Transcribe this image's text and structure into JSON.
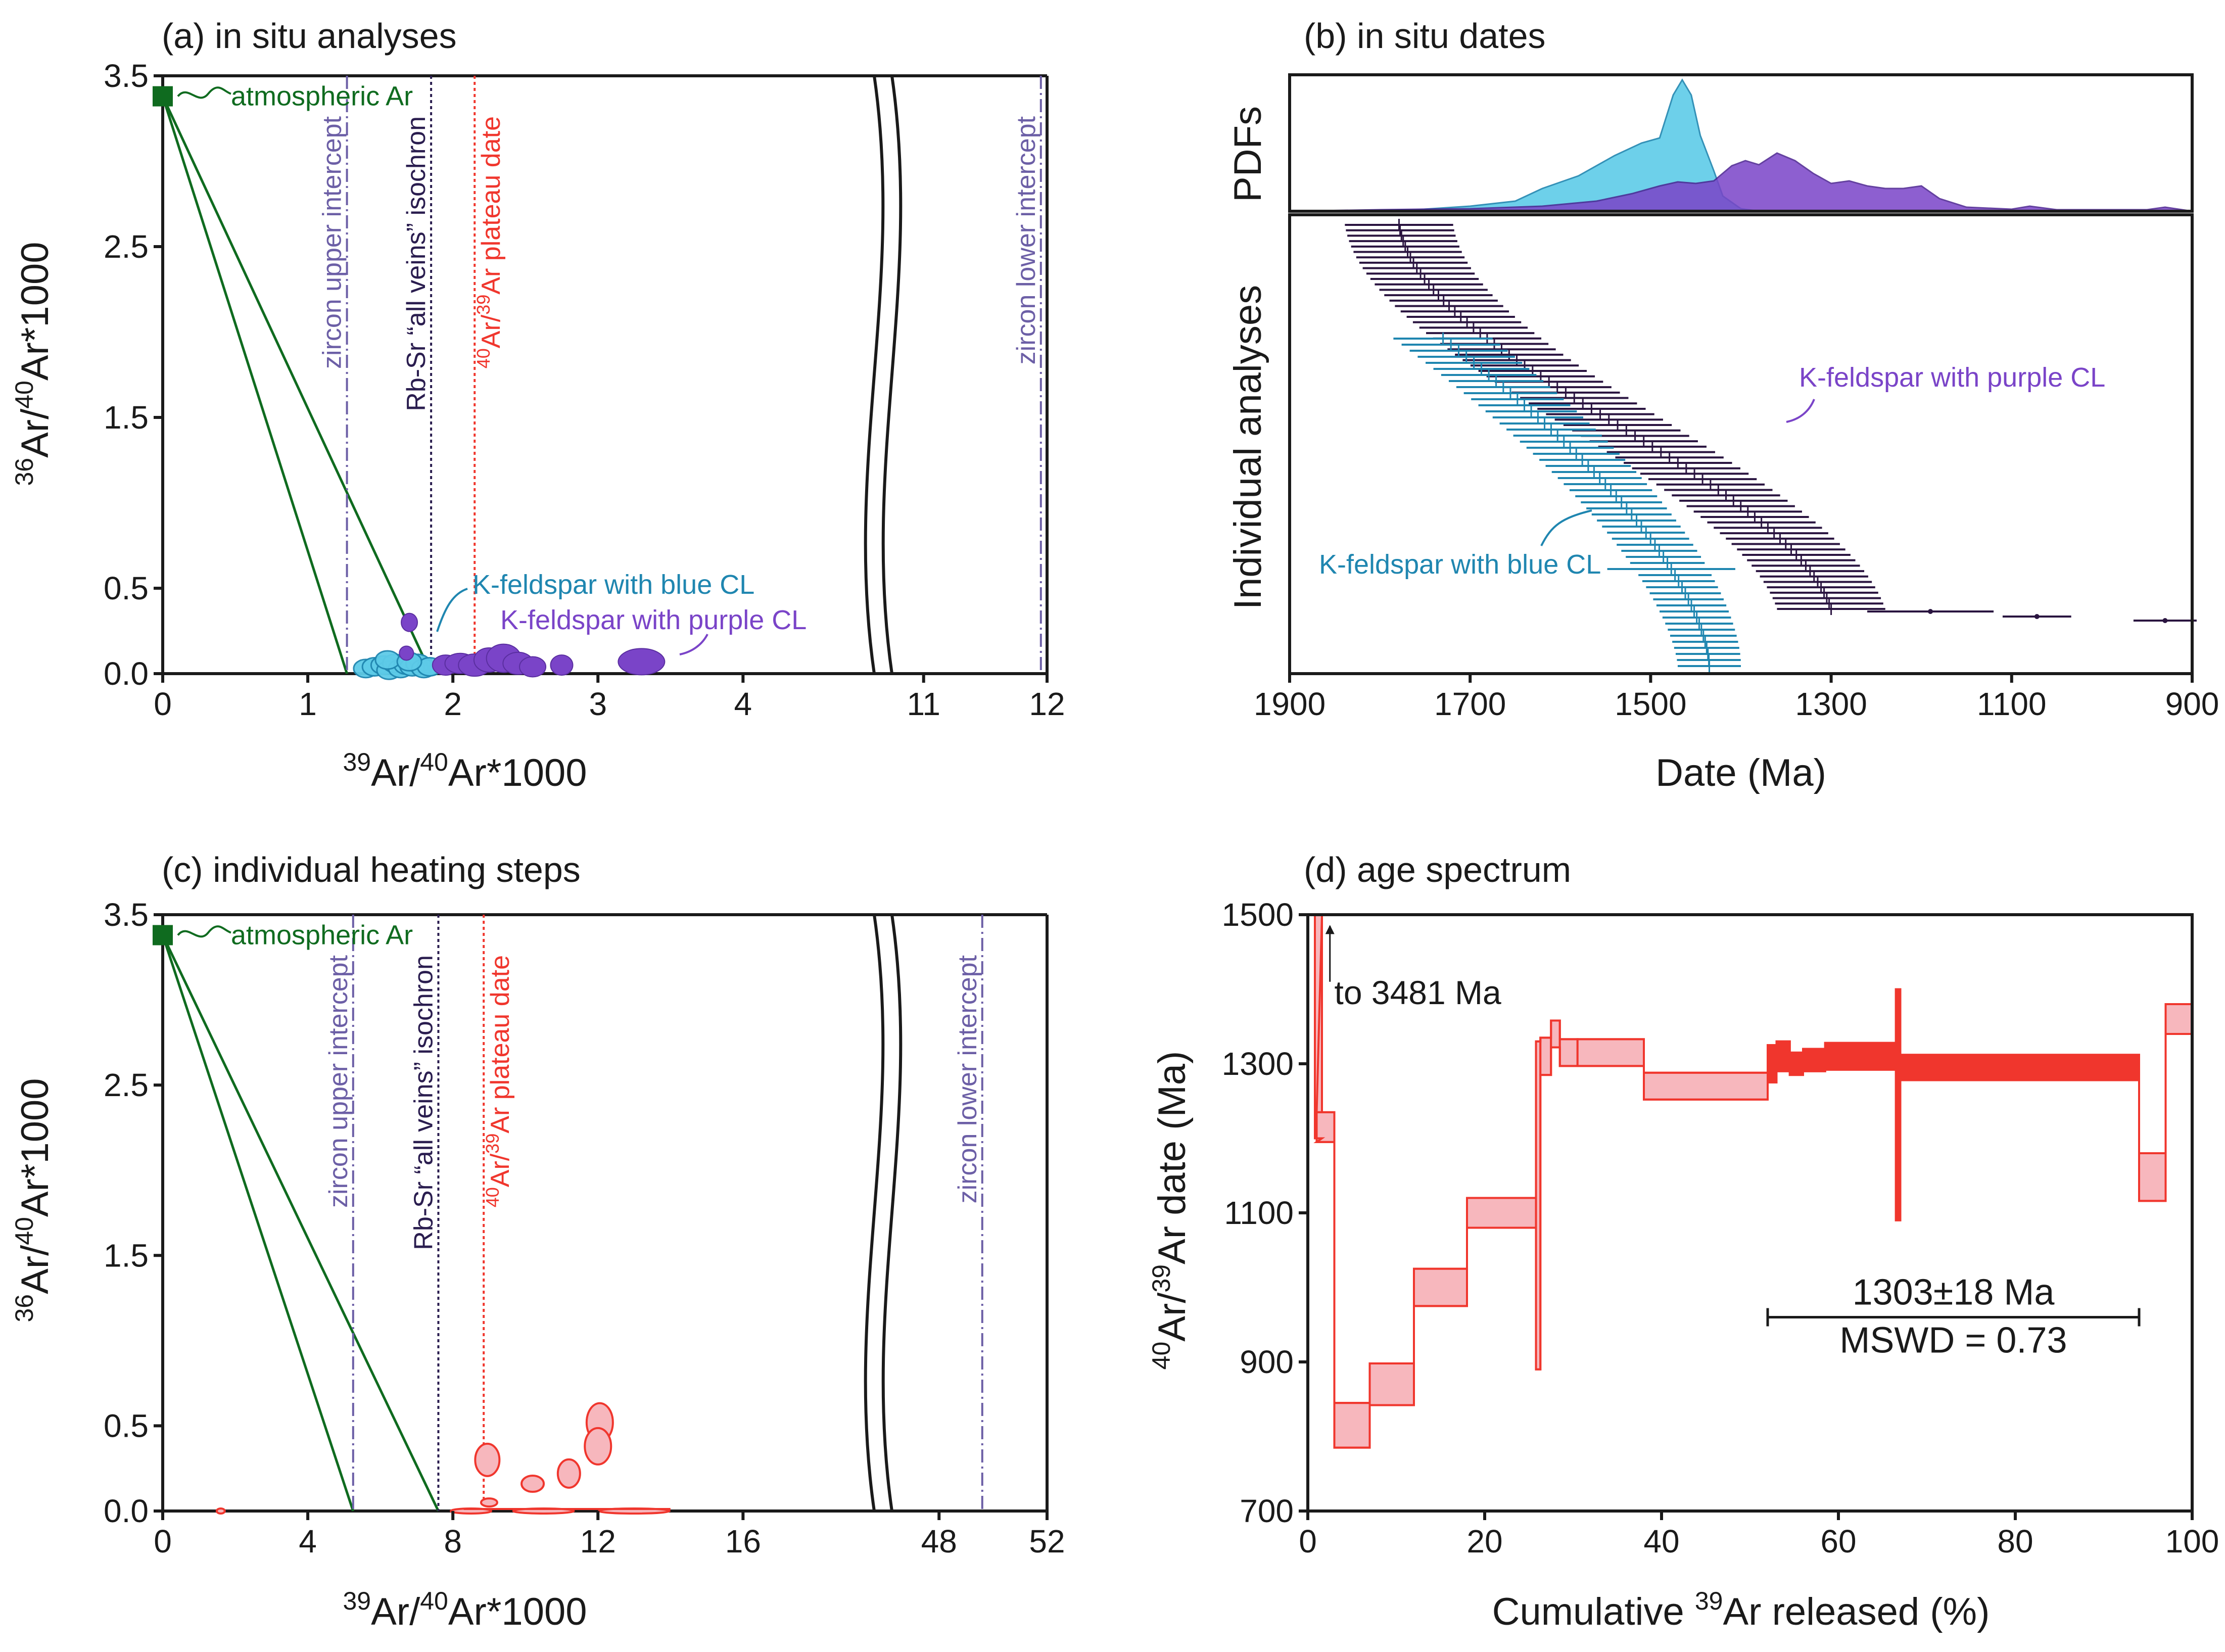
{
  "chart_data": [
    {
      "id": "a",
      "type": "scatter",
      "title": "(a) in situ analyses",
      "xlabel_pre": "39",
      "xlabel_mid": "Ar/",
      "xlabel_sup2": "40",
      "xlabel_post": "Ar*1000",
      "ylabel_pre": "36",
      "ylabel_mid": "Ar/",
      "ylabel_sup2": "40",
      "ylabel_post": "Ar*1000",
      "x_ticks_left": [
        "0",
        "1",
        "2",
        "3",
        "4"
      ],
      "x_ticks_right": [
        "11",
        "12"
      ],
      "y_ticks": [
        "0.0",
        "0.5",
        "1.5",
        "2.5",
        "3.5"
      ],
      "xlim_left": [
        0,
        4.8
      ],
      "xlim_right": [
        10.6,
        12
      ],
      "ylim": [
        0,
        3.5
      ],
      "atmospheric": {
        "label": "atmospheric Ar",
        "x": 0,
        "y": 3.38
      },
      "reference_lines": {
        "zircon_upper": {
          "label": "zircon upper intercept",
          "x": 1.27
        },
        "rbsr": {
          "label": "Rb-Sr “all veins” isochron",
          "x": 1.85
        },
        "plateau": {
          "label_sup": "40",
          "label_mid": "Ar/",
          "label_sup2": "39",
          "label_post": "Ar plateau date",
          "x": 2.15
        },
        "zircon_lower": {
          "label": "zircon lower intercept",
          "x": 11.95
        }
      },
      "mixing_lines_to_x": [
        1.27,
        1.85
      ],
      "series": [
        {
          "name": "K-feldspar with blue CL",
          "label": "K-feldspar with blue CL",
          "points": [
            [
              1.4,
              0.03
            ],
            [
              1.46,
              0.04
            ],
            [
              1.52,
              0.05
            ],
            [
              1.56,
              0.02
            ],
            [
              1.6,
              0.06
            ],
            [
              1.64,
              0.03
            ],
            [
              1.68,
              0.05
            ],
            [
              1.72,
              0.04
            ],
            [
              1.76,
              0.06
            ],
            [
              1.8,
              0.03
            ],
            [
              1.84,
              0.04
            ],
            [
              1.55,
              0.08
            ],
            [
              1.7,
              0.07
            ]
          ]
        },
        {
          "name": "K-feldspar with purple CL",
          "label": "K-feldspar with purple CL",
          "points": [
            [
              1.7,
              0.3
            ],
            [
              1.68,
              0.12
            ],
            [
              1.95,
              0.05
            ],
            [
              2.05,
              0.06
            ],
            [
              2.15,
              0.05
            ],
            [
              2.25,
              0.08
            ],
            [
              2.35,
              0.09
            ],
            [
              2.45,
              0.06
            ],
            [
              2.55,
              0.04
            ],
            [
              2.75,
              0.05
            ],
            [
              3.3,
              0.07
            ]
          ]
        }
      ]
    },
    {
      "id": "b",
      "type": "scatter",
      "title": "(b) in situ dates",
      "top_ylabel": "PDFs",
      "bottom_ylabel": "Individual analyses",
      "xlabel": "Date (Ma)",
      "x_ticks": [
        "1900",
        "1700",
        "1500",
        "1300",
        "1100",
        "900"
      ],
      "xlim": [
        1900,
        900
      ],
      "series": [
        {
          "name": "K-feldspar with purple CL",
          "label": "K-feldspar with purple CL",
          "first": 1780,
          "last": 1300,
          "n": 72,
          "err_first": 60,
          "err_last": 60,
          "extra_points": [
            [
              1190,
              70
            ],
            [
              1072,
              38
            ],
            [
              930,
              35
            ]
          ]
        },
        {
          "name": "K-feldspar with blue CL",
          "label": "K-feldspar with blue CL",
          "first": 1730,
          "last": 1435,
          "n": 55,
          "err_first": 55,
          "err_last": 35
        }
      ]
    },
    {
      "id": "c",
      "type": "scatter",
      "title": "(c) individual heating steps",
      "xlabel_pre": "39",
      "xlabel_mid": "Ar/",
      "xlabel_sup2": "40",
      "xlabel_post": "Ar*1000",
      "ylabel_pre": "36",
      "ylabel_mid": "Ar/",
      "ylabel_sup2": "40",
      "ylabel_post": "Ar*1000",
      "x_ticks_left": [
        "0",
        "4",
        "8",
        "12",
        "16"
      ],
      "x_ticks_right": [
        "48",
        "52"
      ],
      "y_ticks": [
        "0.0",
        "0.5",
        "1.5",
        "2.5",
        "3.5"
      ],
      "xlim_left": [
        0,
        19.2
      ],
      "xlim_right": [
        45.6,
        52
      ],
      "ylim": [
        0,
        3.5
      ],
      "atmospheric": {
        "label": "atmospheric Ar",
        "x": 0,
        "y": 3.38
      },
      "reference_lines": {
        "zircon_upper": {
          "label": "zircon upper intercept",
          "x": 5.25
        },
        "rbsr": {
          "label": "Rb-Sr “all veins” isochron",
          "x": 7.6
        },
        "plateau": {
          "label_sup": "40",
          "label_mid": "Ar/",
          "label_sup2": "39",
          "label_post": "Ar plateau date",
          "x": 8.85
        },
        "zircon_lower": {
          "label": "zircon lower intercept",
          "x": 49.6
        }
      },
      "mixing_lines_to_x": [
        5.25,
        7.6
      ],
      "series": [
        {
          "name": "heating steps",
          "points": [
            [
              12.05,
              0.52
            ],
            [
              12.0,
              0.38
            ],
            [
              8.95,
              0.3
            ],
            [
              11.2,
              0.22
            ],
            [
              10.2,
              0.16
            ],
            [
              9.0,
              0.05
            ],
            [
              8.5,
              0.0
            ],
            [
              10.5,
              0.0
            ],
            [
              13.0,
              0.0
            ],
            [
              1.6,
              0.0
            ]
          ]
        }
      ]
    },
    {
      "id": "d",
      "type": "bar",
      "title": "(d) age spectrum",
      "xlabel_pre": "Cumulative ",
      "xlabel_sup": "39",
      "xlabel_post": "Ar released (%)",
      "ylabel_sup": "40",
      "ylabel_mid": "Ar/",
      "ylabel_sup2": "39",
      "ylabel_post": "Ar date (Ma)",
      "x_ticks": [
        "0",
        "20",
        "40",
        "60",
        "80",
        "100"
      ],
      "y_ticks": [
        "700",
        "900",
        "1100",
        "1300",
        "1500"
      ],
      "xlim": [
        0,
        100
      ],
      "ylim": [
        700,
        1500
      ],
      "arrow_note": "to 3481 Ma",
      "plateau": {
        "from": 52,
        "to": 94,
        "age_label": "1303±18 Ma",
        "mswd_label": "MSWD = 0.73"
      },
      "steps": [
        {
          "x0": 0.8,
          "x1": 1.6,
          "y": 2000,
          "err": 800
        },
        {
          "x0": 1.0,
          "x1": 3.0,
          "y": 1215,
          "err": 20
        },
        {
          "x0": 3.0,
          "x1": 7.0,
          "y": 815,
          "err": 30
        },
        {
          "x0": 7.0,
          "x1": 12.0,
          "y": 870,
          "err": 28
        },
        {
          "x0": 12.0,
          "x1": 18.0,
          "y": 1000,
          "err": 25
        },
        {
          "x0": 18.0,
          "x1": 25.8,
          "y": 1100,
          "err": 20
        },
        {
          "x0": 25.8,
          "x1": 26.3,
          "y": 1110,
          "err": 220
        },
        {
          "x0": 26.3,
          "x1": 27.5,
          "y": 1310,
          "err": 25
        },
        {
          "x0": 27.5,
          "x1": 28.5,
          "y": 1340,
          "err": 18
        },
        {
          "x0": 28.5,
          "x1": 30.5,
          "y": 1315,
          "err": 18
        },
        {
          "x0": 30.5,
          "x1": 38.0,
          "y": 1315,
          "err": 18
        },
        {
          "x0": 38.0,
          "x1": 52.0,
          "y": 1270,
          "err": 18
        },
        {
          "x0": 52.0,
          "x1": 53.0,
          "y": 1300,
          "err": 25
        },
        {
          "x0": 53.0,
          "x1": 54.5,
          "y": 1310,
          "err": 20
        },
        {
          "x0": 54.5,
          "x1": 56.0,
          "y": 1300,
          "err": 15
        },
        {
          "x0": 56.0,
          "x1": 58.5,
          "y": 1305,
          "err": 15
        },
        {
          "x0": 58.5,
          "x1": 66.5,
          "y": 1310,
          "err": 18
        },
        {
          "x0": 66.5,
          "x1": 67.0,
          "y": 1245,
          "err": 155
        },
        {
          "x0": 67.0,
          "x1": 94.0,
          "y": 1295,
          "err": 17
        },
        {
          "x0": 94.0,
          "x1": 97.0,
          "y": 1148,
          "err": 32
        },
        {
          "x0": 97.0,
          "x1": 100.0,
          "y": 1360,
          "err": 20
        }
      ]
    }
  ],
  "colors": {
    "green": "#0f6b1f",
    "zircon": "#6c5fa6",
    "rbsr": "#2a1d4f",
    "plateau": "#f0362d",
    "blue": "#1f86b0",
    "blue_fill": "#5ecbe8",
    "purple": "#7a44c8",
    "dark": "#2a1440",
    "salmon": "#f7b7bd",
    "red": "#f0362d"
  }
}
